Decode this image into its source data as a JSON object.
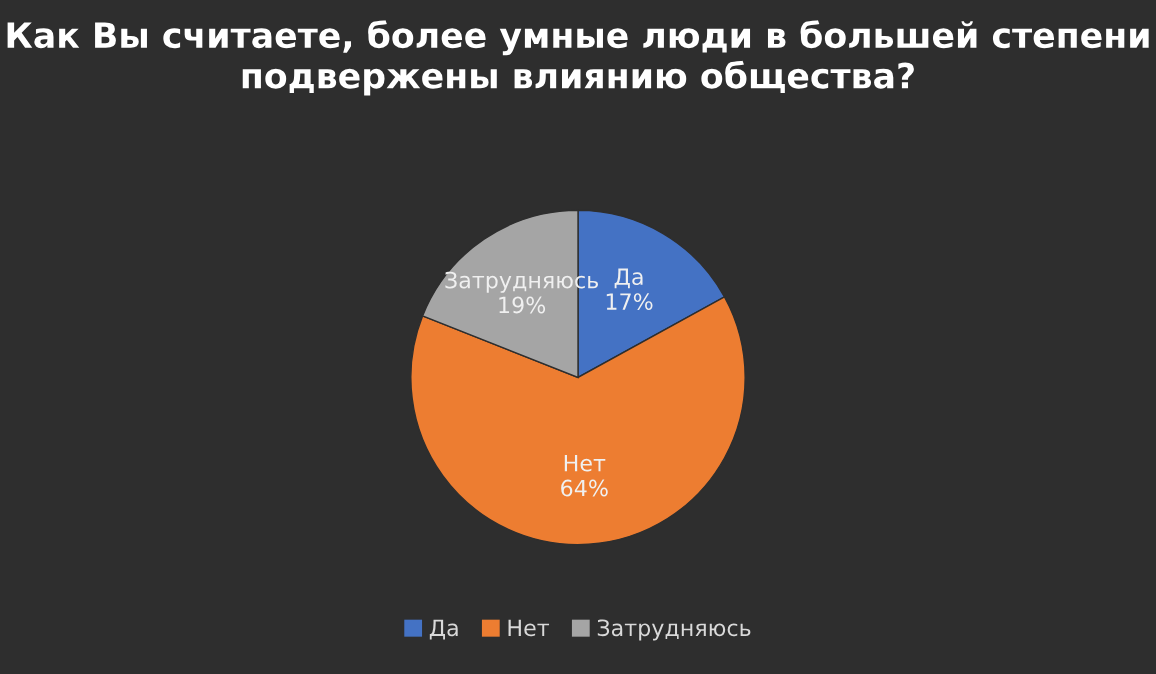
{
  "chart_data": {
    "type": "pie",
    "title": "Как Вы считаете, более умные люди в большей степени подвержены влиянию общества?",
    "categories": [
      "Да",
      "Нет",
      "Затрудняюсь"
    ],
    "values": [
      17,
      64,
      19
    ],
    "value_labels": [
      "17%",
      "64%",
      "19%"
    ],
    "colors": [
      "#4472c4",
      "#ed7d31",
      "#a5a5a5"
    ],
    "legend": "bottom"
  }
}
